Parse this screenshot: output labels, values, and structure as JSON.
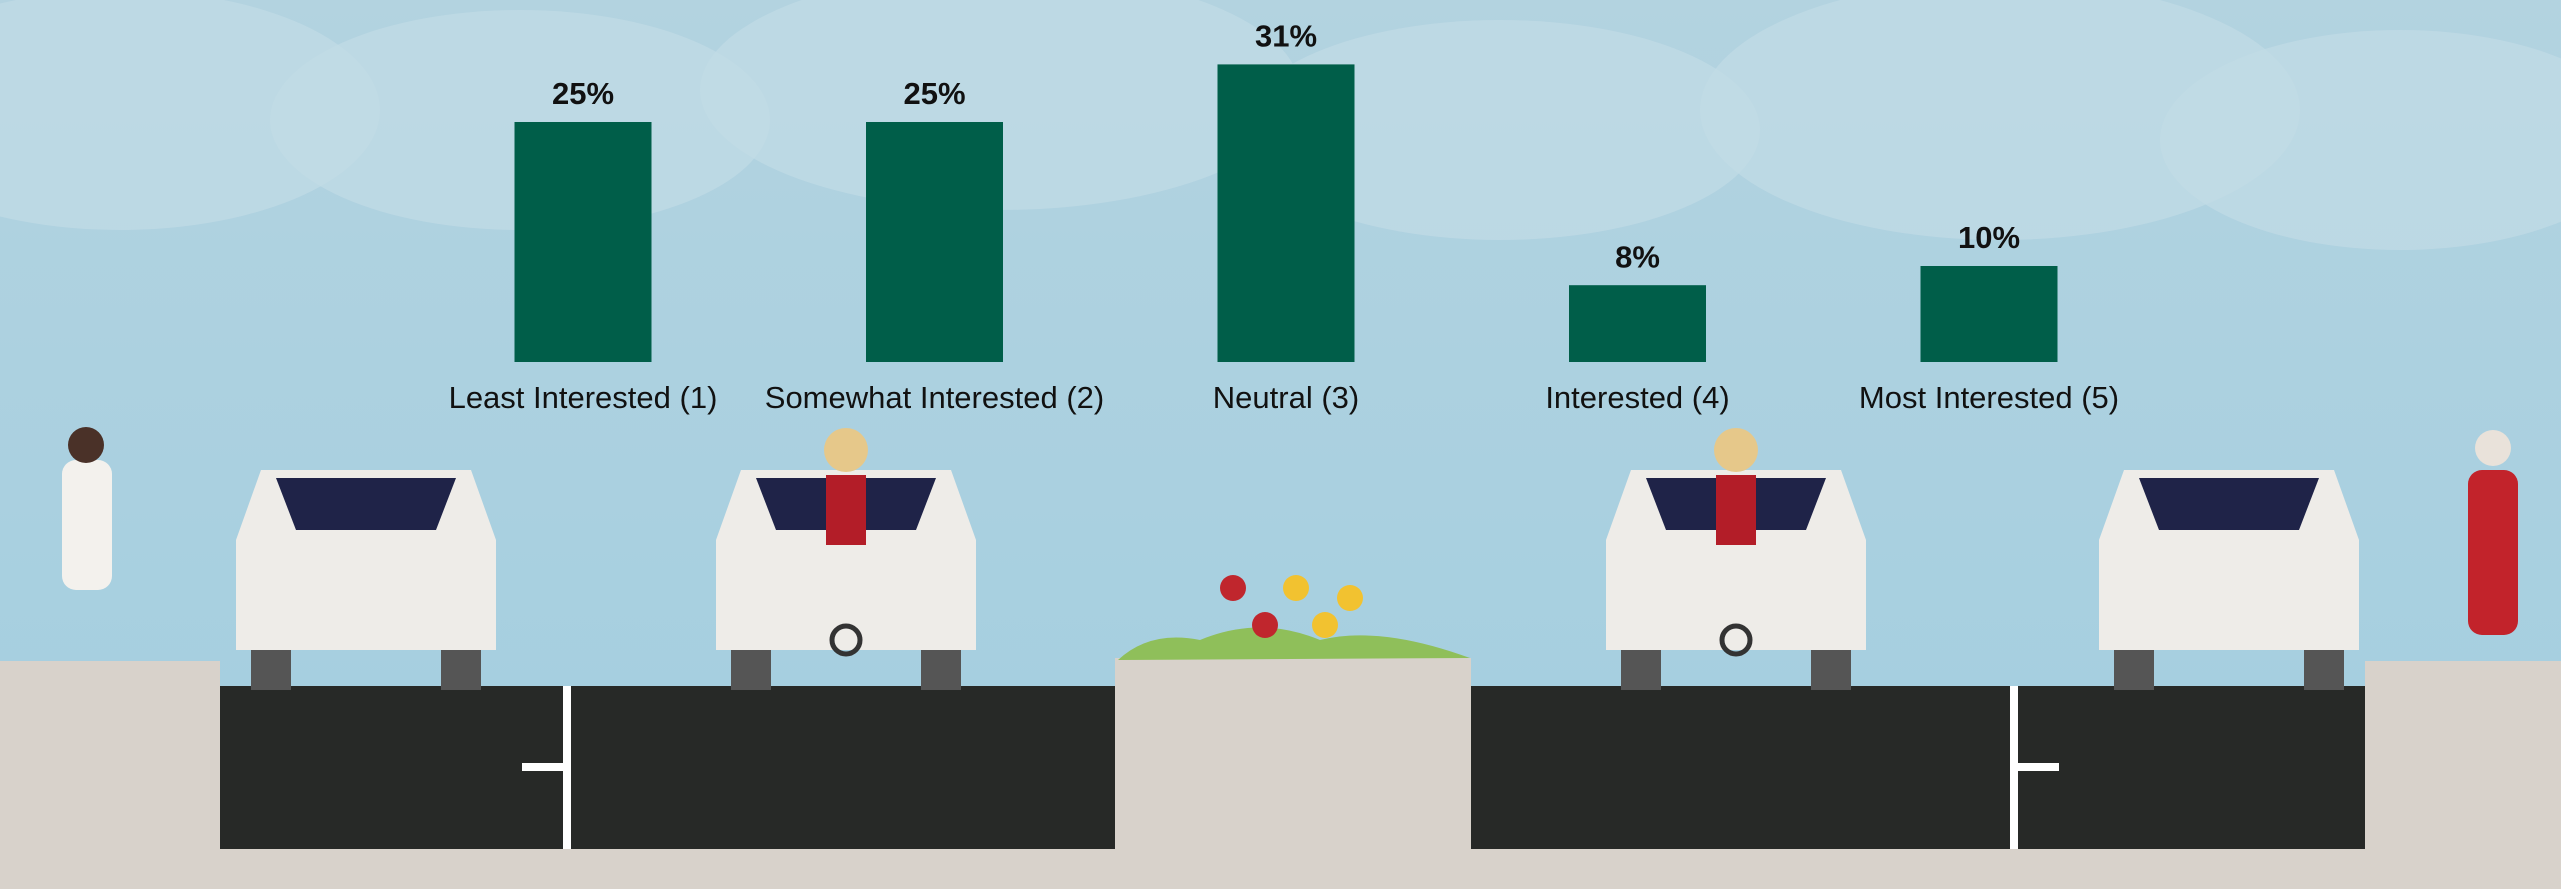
{
  "chart_data": {
    "type": "bar",
    "categories": [
      "Least Interested (1)",
      "Somewhat Interested (2)",
      "Neutral (3)",
      "Interested (4)",
      "Most Interested (5)"
    ],
    "values": [
      25,
      25,
      31,
      8,
      10
    ],
    "value_labels": [
      "25%",
      "25%",
      "31%",
      "8%",
      "10%"
    ],
    "color": "#005e49"
  }
}
